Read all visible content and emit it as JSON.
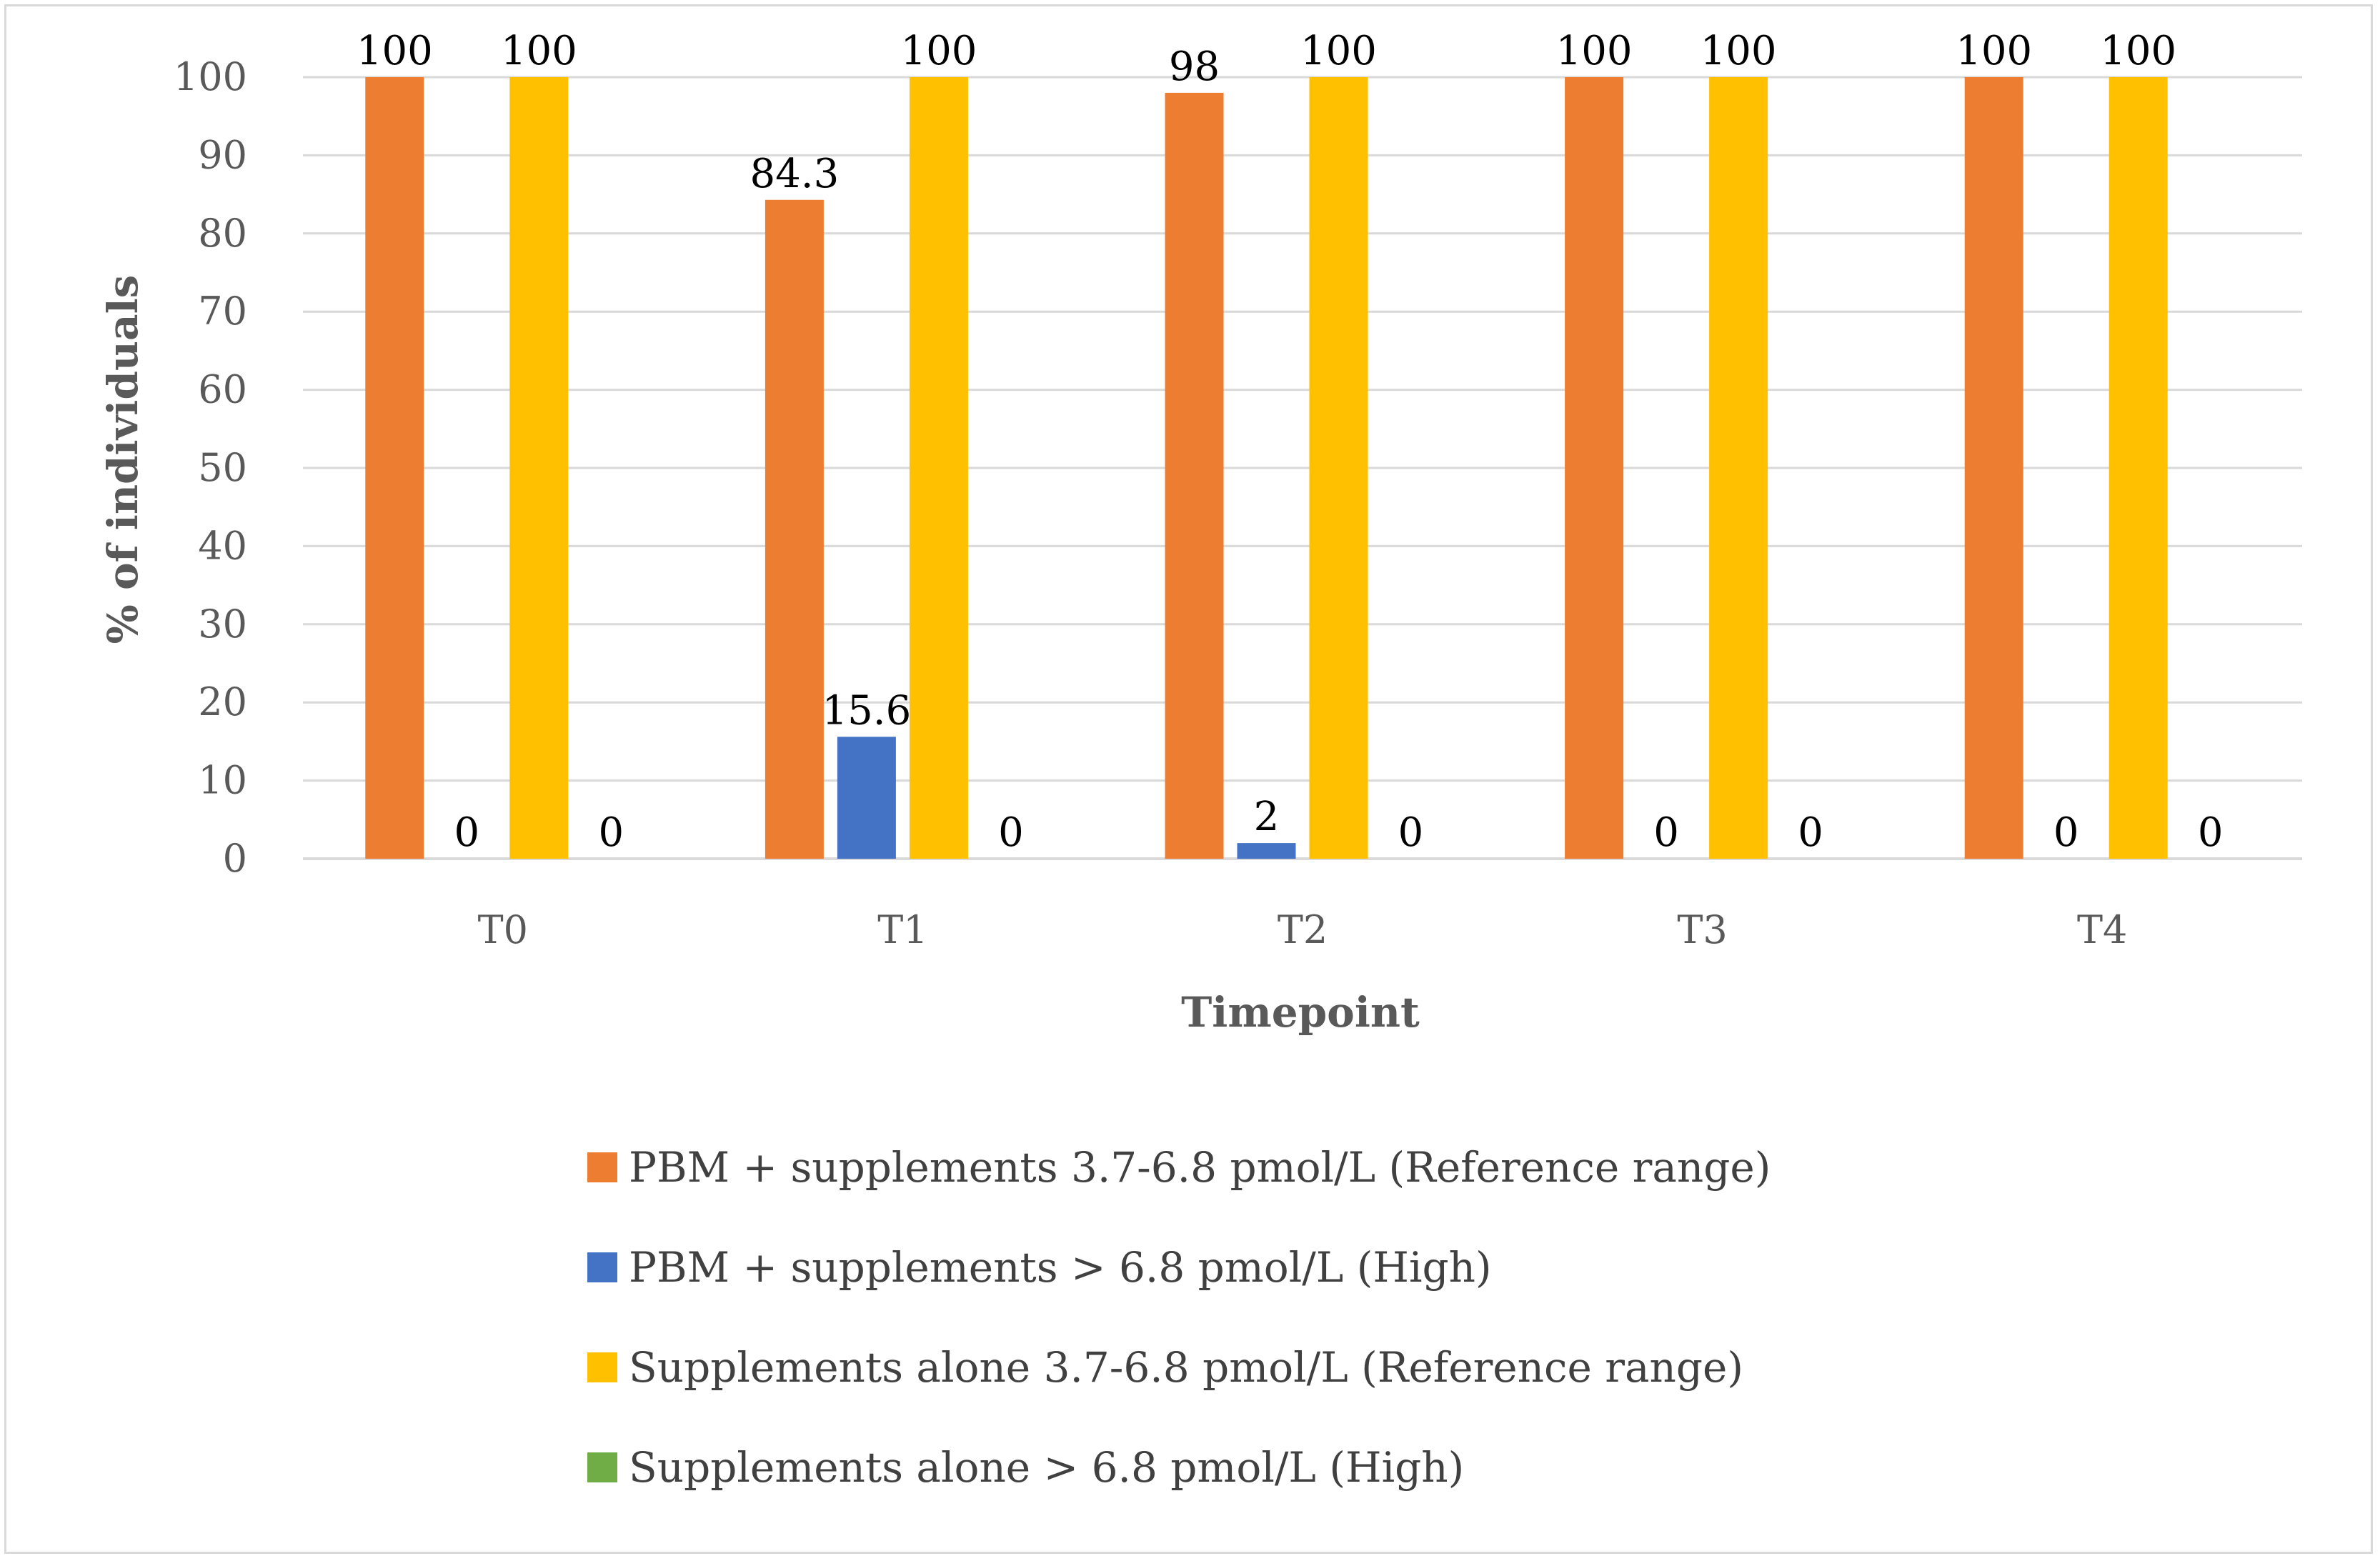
{
  "chart_data": {
    "type": "bar",
    "title": "",
    "xlabel": "Timepoint",
    "ylabel": "% of individuals",
    "ylim": [
      0,
      100
    ],
    "ytick_step": 10,
    "grid": true,
    "legend_position": "bottom",
    "categories": [
      "T0",
      "T1",
      "T2",
      "T3",
      "T4"
    ],
    "series": [
      {
        "name": "PBM + supplements 3.7-6.8 pmol/L (Reference range)",
        "color": "#ED7D31",
        "values": [
          100,
          84.3,
          98,
          100,
          100
        ],
        "labels": [
          "100",
          "84.3",
          "98",
          "100",
          "100"
        ]
      },
      {
        "name": "PBM + supplements > 6.8 pmol/L (High)",
        "color": "#4472C4",
        "values": [
          0,
          15.6,
          2,
          0,
          0
        ],
        "labels": [
          "0",
          "15.6",
          "2",
          "0",
          "0"
        ]
      },
      {
        "name": "Supplements alone 3.7-6.8 pmol/L (Reference range)",
        "color": "#FFC000",
        "values": [
          100,
          100,
          100,
          100,
          100
        ],
        "labels": [
          "100",
          "100",
          "100",
          "100",
          "100"
        ]
      },
      {
        "name": "Supplements alone > 6.8 pmol/L (High)",
        "color": "#70AD47",
        "values": [
          0,
          0,
          0,
          0,
          0
        ],
        "labels": [
          "0",
          "0",
          "0",
          "0",
          "0"
        ]
      }
    ]
  }
}
